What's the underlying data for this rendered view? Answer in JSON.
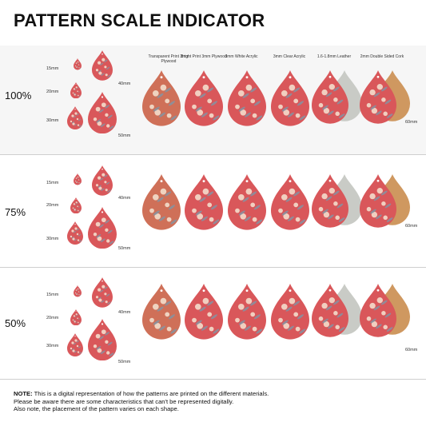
{
  "title": "PATTERN SCALE INDICATOR",
  "materials": [
    "Transparent Print 3mm Plywood",
    "Bright Print 3mm Plywood",
    "3mm White Acrylic",
    "3mm Clear Acrylic",
    "1.6-1.8mm Leather",
    "2mm Double Sided Cork"
  ],
  "sections": [
    {
      "scale": "100%",
      "s15": "15mm",
      "s20": "20mm",
      "s30": "30mm",
      "s40": "40mm",
      "s50": "50mm",
      "s60": "60mm"
    },
    {
      "scale": "75%",
      "s15": "15mm",
      "s20": "20mm",
      "s30": "30mm",
      "s40": "40mm",
      "s50": "50mm",
      "s60": "60mm"
    },
    {
      "scale": "50%",
      "s15": "15mm",
      "s20": "20mm",
      "s30": "30mm",
      "s40": "40mm",
      "s50": "50mm",
      "s60": "60mm"
    }
  ],
  "note": {
    "label": "NOTE:",
    "line1": " This is a digital representation of how the patterns are printed on the different materials.",
    "line2": "Please be aware there are some characteristics that can't be represented digitally.",
    "line3": "Also note, the placement of the pattern varies on each shape."
  },
  "colors": {
    "pattern": "#d9575a",
    "plywood_transparent": "#cf7058",
    "leather": "#c9cbc6",
    "cork": "#cf9860",
    "flower": "#f4e4d2",
    "leaf": "#7f96a6"
  }
}
